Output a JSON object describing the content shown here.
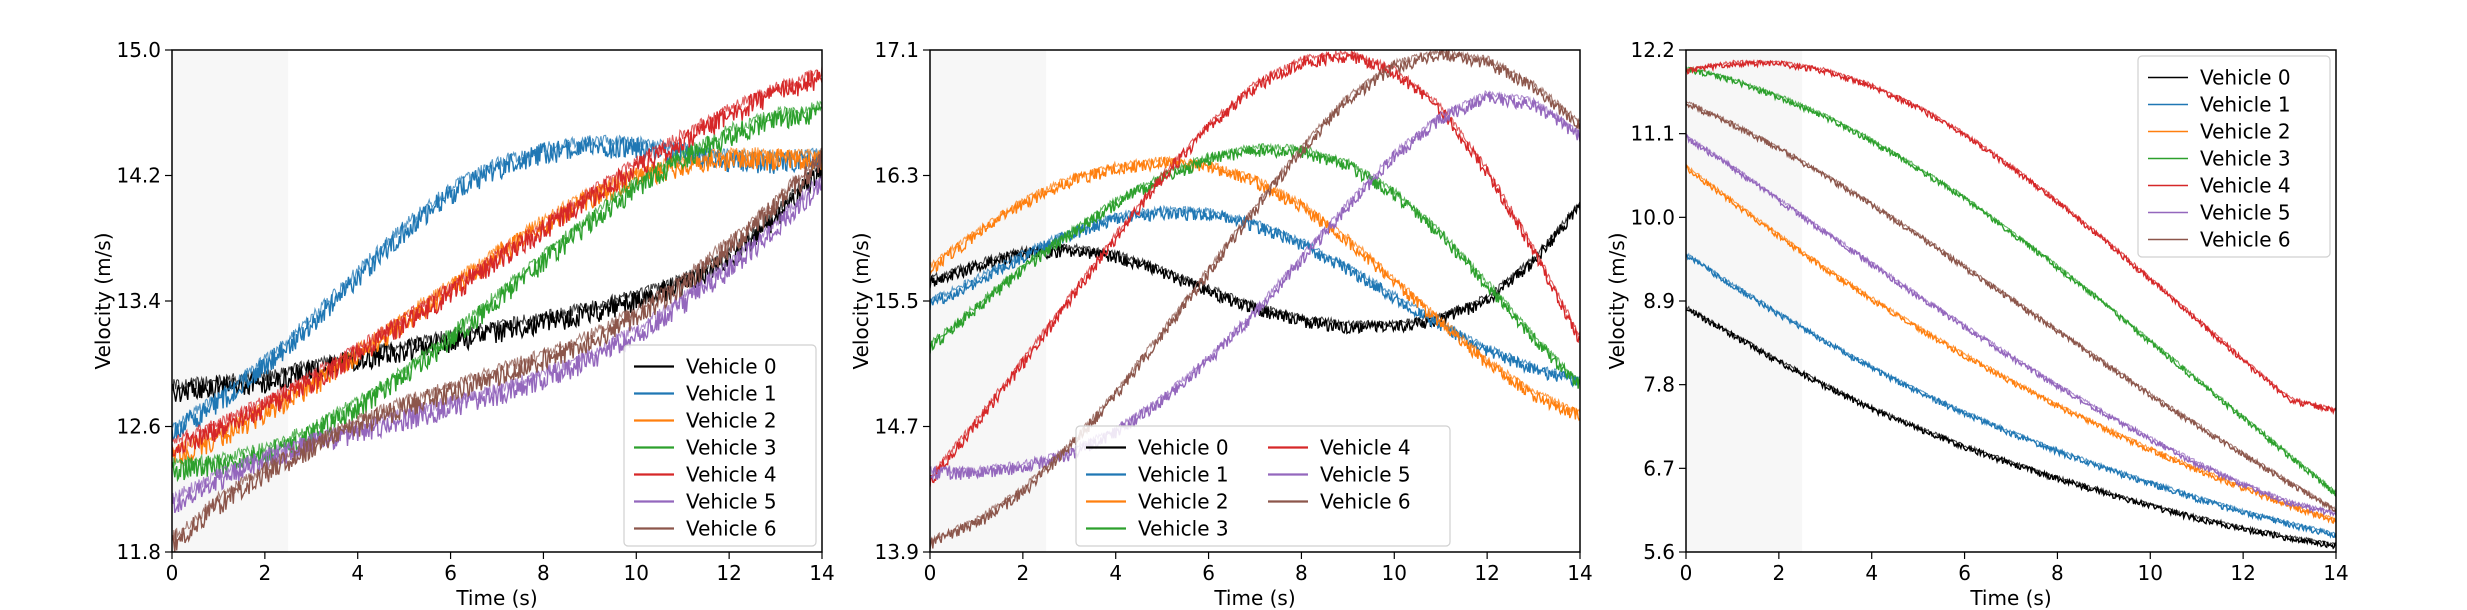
{
  "chart_data": [
    {
      "type": "line",
      "title": "",
      "xlabel": "Time (s)",
      "ylabel": "Velocity (m/s)",
      "xlim": [
        0,
        14
      ],
      "ylim": [
        11.8,
        15.0
      ],
      "xticks": [
        0,
        2,
        4,
        6,
        8,
        10,
        12,
        14
      ],
      "xtick_labels": [
        "0",
        "2",
        "4",
        "6",
        "8",
        "10",
        "12",
        "14"
      ],
      "yticks": [
        11.8,
        12.6,
        13.4,
        14.2,
        15.0
      ],
      "ytick_labels": [
        "11.8",
        "12.6",
        "13.4",
        "14.2",
        "15.0"
      ],
      "shaded_x_range": [
        0,
        2.5
      ],
      "grid": false,
      "legend": {
        "placement": "lower-right",
        "columns": 1
      },
      "noise_amplitude": 0.07,
      "series": [
        {
          "name": "Vehicle 0",
          "color": "#000000",
          "x": [
            0,
            1,
            2,
            3,
            4,
            5,
            6,
            7,
            8,
            9,
            10,
            11,
            12,
            13,
            14
          ],
          "y": [
            12.82,
            12.85,
            12.88,
            12.95,
            13.02,
            13.08,
            13.14,
            13.2,
            13.26,
            13.32,
            13.4,
            13.5,
            13.66,
            13.92,
            14.25
          ]
        },
        {
          "name": "Vehicle 1",
          "color": "#1f77b4",
          "x": [
            0,
            1,
            2,
            3,
            4,
            5,
            6,
            7,
            8,
            9,
            10,
            11,
            12,
            13,
            14
          ],
          "y": [
            12.56,
            12.75,
            12.98,
            13.25,
            13.55,
            13.84,
            14.08,
            14.24,
            14.34,
            14.38,
            14.37,
            14.33,
            14.29,
            14.28,
            14.3
          ]
        },
        {
          "name": "Vehicle 2",
          "color": "#ff7f0e",
          "x": [
            0,
            1,
            2,
            3,
            4,
            5,
            6,
            7,
            8,
            9,
            10,
            11,
            12,
            13,
            14
          ],
          "y": [
            12.4,
            12.52,
            12.68,
            12.85,
            13.05,
            13.26,
            13.47,
            13.68,
            13.88,
            14.05,
            14.18,
            14.26,
            14.3,
            14.3,
            14.3
          ]
        },
        {
          "name": "Vehicle 3",
          "color": "#2ca02c",
          "x": [
            0,
            1,
            2,
            3,
            4,
            5,
            6,
            7,
            8,
            9,
            10,
            11,
            12,
            13,
            14
          ],
          "y": [
            12.32,
            12.35,
            12.42,
            12.55,
            12.72,
            12.92,
            13.15,
            13.4,
            13.65,
            13.9,
            14.12,
            14.3,
            14.45,
            14.55,
            14.6
          ]
        },
        {
          "name": "Vehicle 4",
          "color": "#d62728",
          "x": [
            0,
            1,
            2,
            3,
            4,
            5,
            6,
            7,
            8,
            9,
            10,
            11,
            12,
            13,
            14
          ],
          "y": [
            12.46,
            12.58,
            12.72,
            12.88,
            13.06,
            13.25,
            13.45,
            13.65,
            13.85,
            14.05,
            14.25,
            14.42,
            14.58,
            14.72,
            14.82
          ]
        },
        {
          "name": "Vehicle 5",
          "color": "#9467bd",
          "x": [
            0,
            1,
            2,
            3,
            4,
            5,
            6,
            7,
            8,
            9,
            10,
            11,
            12,
            13,
            14
          ],
          "y": [
            12.1,
            12.26,
            12.38,
            12.48,
            12.56,
            12.64,
            12.72,
            12.8,
            12.9,
            13.02,
            13.18,
            13.38,
            13.6,
            13.85,
            14.15
          ]
        },
        {
          "name": "Vehicle 6",
          "color": "#8c564b",
          "x": [
            0,
            1,
            2,
            3,
            4,
            5,
            6,
            7,
            8,
            9,
            10,
            11,
            12,
            13,
            14
          ],
          "y": [
            11.85,
            12.1,
            12.3,
            12.46,
            12.6,
            12.72,
            12.82,
            12.92,
            13.02,
            13.14,
            13.3,
            13.5,
            13.74,
            14.0,
            14.3
          ]
        }
      ]
    },
    {
      "type": "line",
      "title": "",
      "xlabel": "Time (s)",
      "ylabel": "Velocity (m/s)",
      "xlim": [
        0,
        14
      ],
      "ylim": [
        13.9,
        17.1
      ],
      "xticks": [
        0,
        2,
        4,
        6,
        8,
        10,
        12,
        14
      ],
      "xtick_labels": [
        "0",
        "2",
        "4",
        "6",
        "8",
        "10",
        "12",
        "14"
      ],
      "yticks": [
        13.9,
        14.7,
        15.5,
        16.3,
        17.1
      ],
      "ytick_labels": [
        "13.9",
        "14.7",
        "15.5",
        "16.3",
        "17.1"
      ],
      "shaded_x_range": [
        0,
        2.5
      ],
      "grid": false,
      "legend": {
        "placement": "lower-center",
        "columns": 2
      },
      "noise_amplitude": 0.04,
      "series": [
        {
          "name": "Vehicle 0",
          "color": "#000000",
          "x": [
            0,
            1,
            2,
            3,
            4,
            5,
            6,
            7,
            8,
            9,
            10,
            11,
            12,
            13,
            14
          ],
          "y": [
            15.62,
            15.72,
            15.8,
            15.82,
            15.78,
            15.68,
            15.56,
            15.45,
            15.37,
            15.33,
            15.33,
            15.38,
            15.5,
            15.75,
            16.1
          ]
        },
        {
          "name": "Vehicle 1",
          "color": "#1f77b4",
          "x": [
            0,
            1,
            2,
            3,
            4,
            5,
            6,
            7,
            8,
            9,
            10,
            11,
            12,
            13,
            14
          ],
          "y": [
            15.48,
            15.62,
            15.78,
            15.92,
            16.02,
            16.06,
            16.05,
            15.98,
            15.86,
            15.7,
            15.52,
            15.34,
            15.18,
            15.06,
            14.98
          ]
        },
        {
          "name": "Vehicle 2",
          "color": "#ff7f0e",
          "x": [
            0,
            1,
            2,
            3,
            4,
            5,
            6,
            7,
            8,
            9,
            10,
            11,
            12,
            13,
            14
          ],
          "y": [
            15.7,
            15.92,
            16.12,
            16.26,
            16.34,
            16.38,
            16.35,
            16.26,
            16.1,
            15.88,
            15.62,
            15.36,
            15.1,
            14.9,
            14.76
          ]
        },
        {
          "name": "Vehicle 3",
          "color": "#2ca02c",
          "x": [
            0,
            1,
            2,
            3,
            4,
            5,
            6,
            7,
            8,
            9,
            10,
            11,
            12,
            13,
            14
          ],
          "y": [
            15.2,
            15.45,
            15.7,
            15.92,
            16.12,
            16.28,
            16.4,
            16.46,
            16.45,
            16.36,
            16.18,
            15.92,
            15.6,
            15.26,
            14.95
          ]
        },
        {
          "name": "Vehicle 4",
          "color": "#d62728",
          "x": [
            0,
            1,
            2,
            3,
            4,
            5,
            6,
            7,
            8,
            9,
            10,
            11,
            12,
            13,
            14
          ],
          "y": [
            14.35,
            14.72,
            15.1,
            15.5,
            15.9,
            16.28,
            16.6,
            16.86,
            17.02,
            17.06,
            16.96,
            16.72,
            16.32,
            15.82,
            15.25
          ]
        },
        {
          "name": "Vehicle 5",
          "color": "#9467bd",
          "x": [
            0,
            1,
            2,
            3,
            4,
            5,
            6,
            7,
            8,
            9,
            10,
            11,
            12,
            13,
            14
          ],
          "y": [
            14.4,
            14.4,
            14.44,
            14.52,
            14.66,
            14.86,
            15.12,
            15.42,
            15.76,
            16.1,
            16.42,
            16.66,
            16.8,
            16.75,
            16.55
          ]
        },
        {
          "name": "Vehicle 6",
          "color": "#8c564b",
          "x": [
            0,
            1,
            2,
            3,
            4,
            5,
            6,
            7,
            8,
            9,
            10,
            11,
            12,
            13,
            14
          ],
          "y": [
            13.95,
            14.08,
            14.28,
            14.56,
            14.9,
            15.28,
            15.68,
            16.08,
            16.46,
            16.78,
            16.99,
            17.07,
            17.02,
            16.86,
            16.62
          ]
        }
      ]
    },
    {
      "type": "line",
      "title": "",
      "xlabel": "Time (s)",
      "ylabel": "Velocity (m/s)",
      "xlim": [
        0,
        14
      ],
      "ylim": [
        5.6,
        12.2
      ],
      "xticks": [
        0,
        2,
        4,
        6,
        8,
        10,
        12,
        14
      ],
      "xtick_labels": [
        "0",
        "2",
        "4",
        "6",
        "8",
        "10",
        "12",
        "14"
      ],
      "yticks": [
        5.6,
        6.7,
        7.8,
        8.9,
        10.0,
        11.1,
        12.2
      ],
      "ytick_labels": [
        "5.6",
        "6.7",
        "7.8",
        "8.9",
        "10.0",
        "11.1",
        "12.2"
      ],
      "shaded_x_range": [
        0,
        2.5
      ],
      "grid": false,
      "legend": {
        "placement": "upper-right",
        "columns": 1
      },
      "noise_amplitude": 0.04,
      "series": [
        {
          "name": "Vehicle 0",
          "color": "#000000",
          "x": [
            0,
            1,
            2,
            3,
            4,
            5,
            6,
            7,
            8,
            9,
            10,
            11,
            12,
            13,
            14
          ],
          "y": [
            8.8,
            8.45,
            8.1,
            7.78,
            7.48,
            7.22,
            6.98,
            6.76,
            6.56,
            6.38,
            6.2,
            6.04,
            5.9,
            5.78,
            5.68
          ]
        },
        {
          "name": "Vehicle 1",
          "color": "#1f77b4",
          "x": [
            0,
            1,
            2,
            3,
            4,
            5,
            6,
            7,
            8,
            9,
            10,
            11,
            12,
            13,
            14
          ],
          "y": [
            9.5,
            9.1,
            8.72,
            8.36,
            8.02,
            7.7,
            7.42,
            7.16,
            6.92,
            6.7,
            6.5,
            6.3,
            6.12,
            5.96,
            5.82
          ]
        },
        {
          "name": "Vehicle 2",
          "color": "#ff7f0e",
          "x": [
            0,
            1,
            2,
            3,
            4,
            5,
            6,
            7,
            8,
            9,
            10,
            11,
            12,
            13,
            14
          ],
          "y": [
            10.65,
            10.2,
            9.75,
            9.32,
            8.92,
            8.54,
            8.18,
            7.84,
            7.52,
            7.22,
            6.94,
            6.68,
            6.44,
            6.2,
            6.0
          ]
        },
        {
          "name": "Vehicle 3",
          "color": "#2ca02c",
          "x": [
            0,
            1,
            2,
            3,
            4,
            5,
            6,
            7,
            8,
            9,
            10,
            11,
            12,
            13,
            14
          ],
          "y": [
            11.95,
            11.8,
            11.58,
            11.32,
            11.0,
            10.64,
            10.24,
            9.8,
            9.34,
            8.86,
            8.36,
            7.86,
            7.36,
            6.86,
            6.36
          ]
        },
        {
          "name": "Vehicle 4",
          "color": "#d62728",
          "x": [
            0,
            1,
            2,
            3,
            4,
            5,
            6,
            7,
            8,
            9,
            10,
            11,
            12,
            13,
            14
          ],
          "y": [
            11.92,
            12.02,
            12.02,
            11.92,
            11.72,
            11.44,
            11.08,
            10.66,
            10.2,
            9.7,
            9.18,
            8.65,
            8.12,
            7.6,
            7.45
          ]
        },
        {
          "name": "Vehicle 5",
          "color": "#9467bd",
          "x": [
            0,
            1,
            2,
            3,
            4,
            5,
            6,
            7,
            8,
            9,
            10,
            11,
            12,
            13,
            14
          ],
          "y": [
            11.05,
            10.65,
            10.22,
            9.8,
            9.38,
            8.96,
            8.56,
            8.16,
            7.78,
            7.42,
            7.08,
            6.76,
            6.48,
            6.24,
            6.1
          ]
        },
        {
          "name": "Vehicle 6",
          "color": "#8c564b",
          "x": [
            0,
            1,
            2,
            3,
            4,
            5,
            6,
            7,
            8,
            9,
            10,
            11,
            12,
            13,
            14
          ],
          "y": [
            11.5,
            11.22,
            10.9,
            10.54,
            10.16,
            9.76,
            9.34,
            8.92,
            8.5,
            8.08,
            7.66,
            7.26,
            6.88,
            6.5,
            6.14
          ]
        }
      ]
    }
  ]
}
